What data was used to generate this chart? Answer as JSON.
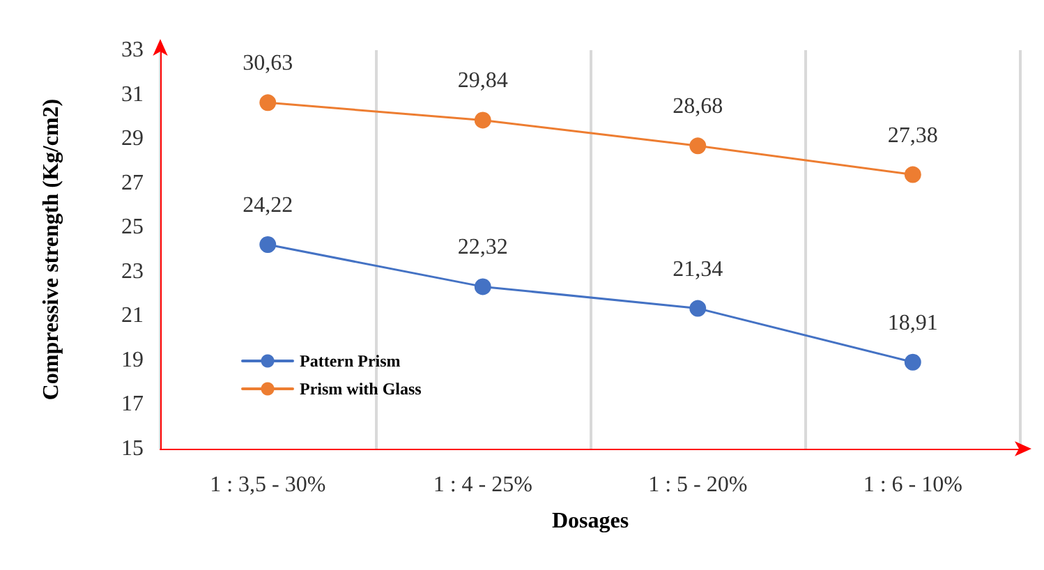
{
  "chart_data": {
    "type": "line",
    "xlabel": "Dosages",
    "ylabel": "Compressive strength (Kg/cm2)",
    "categories": [
      "1 : 3,5 - 30%",
      "1 : 4 - 25%",
      "1 : 5 - 20%",
      "1 : 6 - 10%"
    ],
    "series": [
      {
        "name": "Pattern Prism",
        "color": "#4472c4",
        "values": [
          24.22,
          22.32,
          21.34,
          18.91
        ],
        "value_labels": [
          "24,22",
          "22,32",
          "21,34",
          "18,91"
        ]
      },
      {
        "name": "Prism with Glass",
        "color": "#ed7d31",
        "values": [
          30.63,
          29.84,
          28.68,
          27.38
        ],
        "value_labels": [
          "30,63",
          "29,84",
          "28,68",
          "27,38"
        ]
      }
    ],
    "ylim": [
      15,
      33
    ],
    "yticks": [
      15,
      17,
      19,
      21,
      23,
      25,
      27,
      29,
      31,
      33
    ],
    "grid": "x",
    "legend": "left",
    "marker": "circle",
    "line_style": "solid"
  }
}
